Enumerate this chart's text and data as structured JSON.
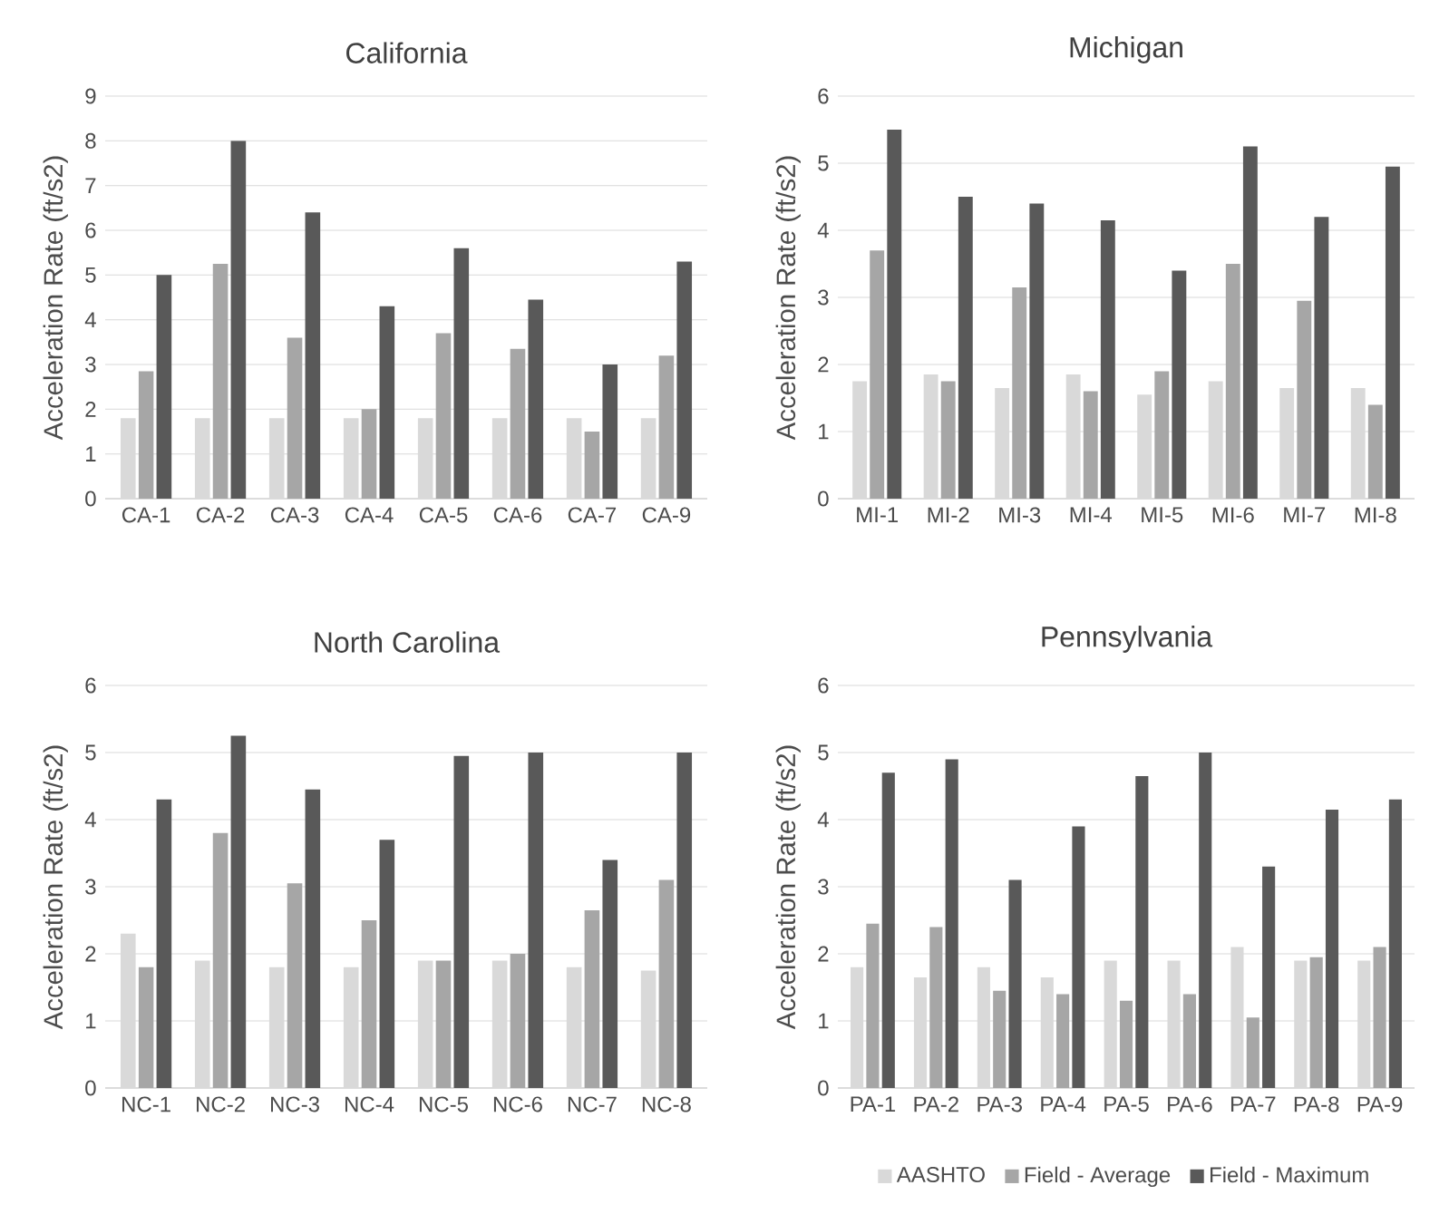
{
  "chart_data": [
    {
      "type": "bar",
      "title": "California",
      "ylabel": "Acceleration Rate (ft/s2)",
      "categories": [
        "CA-1",
        "CA-2",
        "CA-3",
        "CA-4",
        "CA-5",
        "CA-6",
        "CA-7",
        "CA-9"
      ],
      "ylim": [
        0,
        9
      ],
      "yticks": [
        0,
        1,
        2,
        3,
        4,
        5,
        6,
        7,
        8,
        9
      ],
      "grid": "y",
      "series": [
        {
          "color": "#d9d9d9",
          "values": [
            1.8,
            1.8,
            1.8,
            1.8,
            1.8,
            1.8,
            1.8,
            1.8
          ]
        },
        {
          "color": "#a6a6a6",
          "values": [
            2.85,
            5.25,
            3.6,
            2.0,
            3.7,
            3.35,
            1.5,
            3.2
          ]
        },
        {
          "color": "#595959",
          "values": [
            5.0,
            8.0,
            6.4,
            4.3,
            5.6,
            4.45,
            3.0,
            5.3
          ]
        }
      ]
    },
    {
      "type": "bar",
      "title": "Michigan",
      "ylabel": "Acceleration Rate (ft/s2)",
      "categories": [
        "MI-1",
        "MI-2",
        "MI-3",
        "MI-4",
        "MI-5",
        "MI-6",
        "MI-7",
        "MI-8"
      ],
      "ylim": [
        0,
        6
      ],
      "yticks": [
        0,
        1,
        2,
        3,
        4,
        5,
        6
      ],
      "grid": "y",
      "series": [
        {
          "color": "#d9d9d9",
          "values": [
            1.75,
            1.85,
            1.65,
            1.85,
            1.55,
            1.75,
            1.65,
            1.65
          ]
        },
        {
          "color": "#a6a6a6",
          "values": [
            3.7,
            1.75,
            3.15,
            1.6,
            1.9,
            3.5,
            2.95,
            1.4
          ]
        },
        {
          "color": "#595959",
          "values": [
            5.5,
            4.5,
            4.4,
            4.15,
            3.4,
            5.25,
            4.2,
            4.95
          ]
        }
      ]
    },
    {
      "type": "bar",
      "title": "North Carolina",
      "ylabel": "Acceleration Rate (ft/s2)",
      "categories": [
        "NC-1",
        "NC-2",
        "NC-3",
        "NC-4",
        "NC-5",
        "NC-6",
        "NC-7",
        "NC-8"
      ],
      "ylim": [
        0,
        6
      ],
      "yticks": [
        0,
        1,
        2,
        3,
        4,
        5,
        6
      ],
      "grid": "y",
      "series": [
        {
          "color": "#d9d9d9",
          "values": [
            2.3,
            1.9,
            1.8,
            1.8,
            1.9,
            1.9,
            1.8,
            1.75
          ]
        },
        {
          "color": "#a6a6a6",
          "values": [
            1.8,
            3.8,
            3.05,
            2.5,
            1.9,
            2.0,
            2.65,
            3.1
          ]
        },
        {
          "color": "#595959",
          "values": [
            4.3,
            5.25,
            4.45,
            3.7,
            4.95,
            5.0,
            3.4,
            5.0
          ]
        }
      ]
    },
    {
      "type": "bar",
      "title": "Pennsylvania",
      "ylabel": "Acceleration Rate (ft/s2)",
      "categories": [
        "PA-1",
        "PA-2",
        "PA-3",
        "PA-4",
        "PA-5",
        "PA-6",
        "PA-7",
        "PA-8",
        "PA-9"
      ],
      "ylim": [
        0,
        6
      ],
      "yticks": [
        0,
        1,
        2,
        3,
        4,
        5,
        6
      ],
      "grid": "y",
      "legend": "bottom",
      "series": [
        {
          "name": "AASHTO",
          "color": "#d9d9d9",
          "values": [
            1.8,
            1.65,
            1.8,
            1.65,
            1.9,
            1.9,
            2.1,
            1.9,
            1.9
          ]
        },
        {
          "name": "Field - Average",
          "color": "#a6a6a6",
          "values": [
            2.45,
            2.4,
            1.45,
            1.4,
            1.3,
            1.4,
            1.05,
            1.95,
            2.1
          ]
        },
        {
          "name": "Field - Maximum",
          "color": "#595959",
          "values": [
            4.7,
            4.9,
            3.1,
            3.9,
            4.65,
            5.0,
            3.3,
            4.15,
            4.3
          ]
        }
      ]
    }
  ]
}
